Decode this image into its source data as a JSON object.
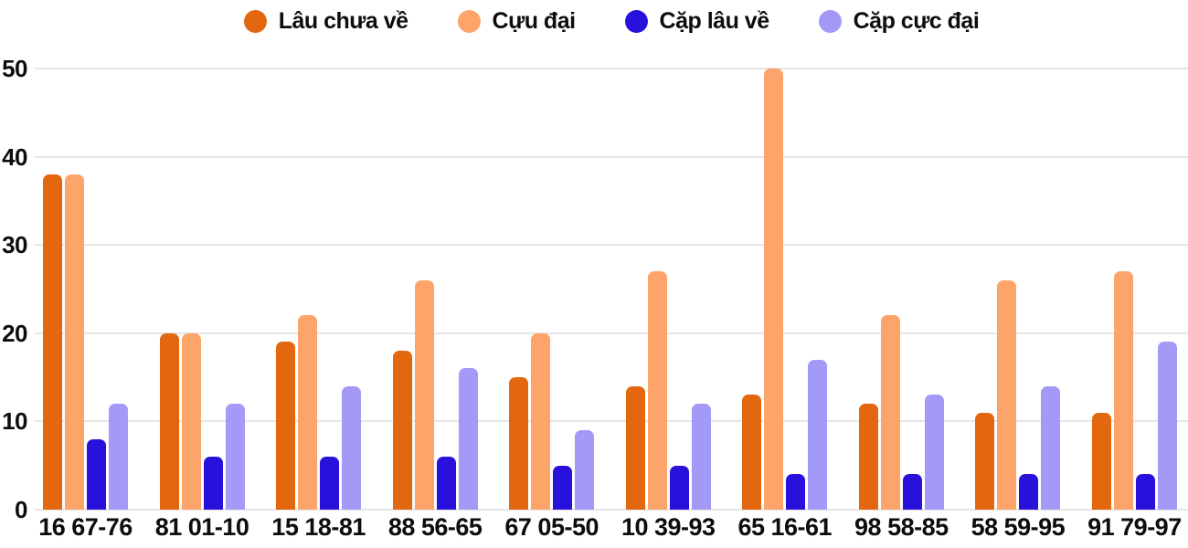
{
  "styles": {
    "background": "#FFFFFF",
    "grid_color": "#E6E6E6",
    "text_color": "#0D0D0D"
  },
  "chart_data": {
    "type": "bar",
    "title": "",
    "xlabel": "",
    "ylabel": "",
    "categories": [
      "16 67-76",
      "81 01-10",
      "15 18-81",
      "88 56-65",
      "67 05-50",
      "10 39-93",
      "65 16-61",
      "98 58-85",
      "58 59-95",
      "91 79-97"
    ],
    "series": [
      {
        "name": "Lâu chưa về",
        "color": "#E2670F",
        "values": [
          38,
          20,
          19,
          18,
          15,
          14,
          13,
          12,
          11,
          11
        ]
      },
      {
        "name": "Cựu đại",
        "color": "#FCA46A",
        "values": [
          38,
          20,
          22,
          26,
          20,
          27,
          50,
          22,
          26,
          27
        ]
      },
      {
        "name": "Cặp lâu về",
        "color": "#2911DC",
        "values": [
          8,
          6,
          6,
          6,
          5,
          5,
          4,
          4,
          4,
          4
        ]
      },
      {
        "name": "Cặp cực đại",
        "color": "#A29AF6",
        "values": [
          12,
          12,
          14,
          16,
          9,
          12,
          17,
          13,
          14,
          19
        ]
      }
    ],
    "ylim": [
      0,
      50
    ],
    "yticks": [
      0,
      10,
      20,
      30,
      40,
      50
    ],
    "grid": true,
    "legend_position": "top"
  }
}
